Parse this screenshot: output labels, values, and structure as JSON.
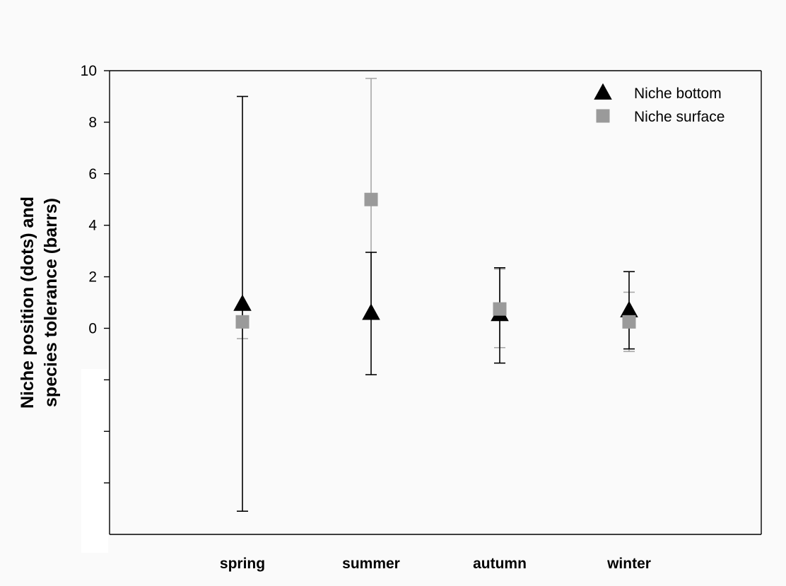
{
  "chart_data": {
    "type": "scatter",
    "title": "",
    "xlabel": "",
    "ylabel_lines": [
      "Niche position (dots) and",
      "species tolerance (barrs)"
    ],
    "categories": [
      "spring",
      "summer",
      "autumn",
      "winter"
    ],
    "ylim": [
      -8,
      10
    ],
    "yticks_labeled": [
      0,
      2,
      4,
      6,
      8,
      10
    ],
    "yticks_unlabeled": [
      -2,
      -4,
      -6
    ],
    "grid": false,
    "legend_position": "top-right",
    "series": [
      {
        "name": "Niche bottom",
        "marker": "triangle",
        "color": "#000000",
        "errorbar_color": "#000000",
        "values": [
          0.95,
          0.6,
          0.55,
          0.7
        ],
        "lower": [
          -7.1,
          -1.8,
          -1.35,
          -0.8
        ],
        "upper": [
          9.0,
          2.95,
          2.35,
          2.2
        ]
      },
      {
        "name": "Niche surface",
        "marker": "square",
        "color": "#9a9a9a",
        "errorbar_color": "#a8a8a8",
        "values": [
          0.25,
          5.0,
          0.75,
          0.25
        ],
        "lower": [
          -0.4,
          0.35,
          -0.75,
          -0.9
        ],
        "upper": [
          0.9,
          9.7,
          2.3,
          1.4
        ]
      }
    ]
  }
}
